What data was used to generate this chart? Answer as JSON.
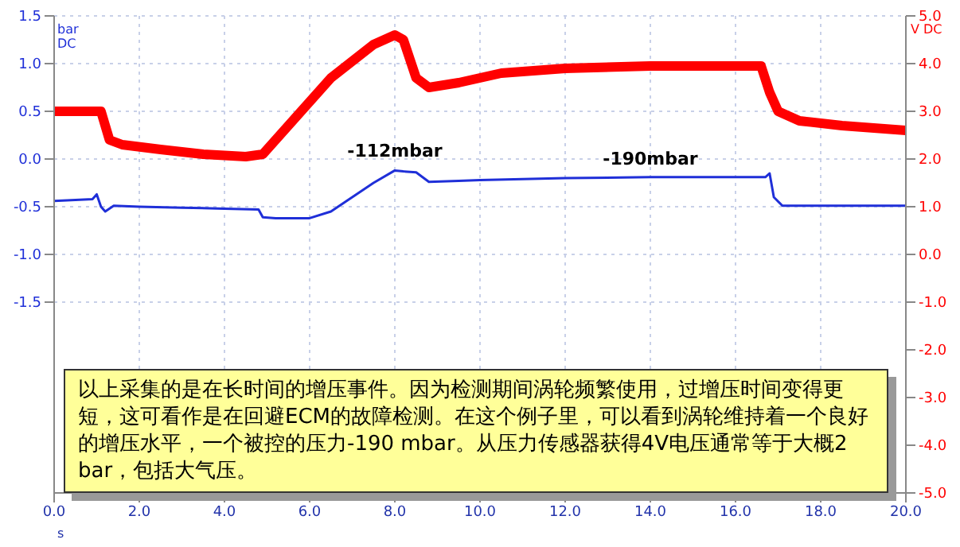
{
  "chart_data": {
    "type": "line",
    "xlabel": "s",
    "ylabel": "bar DC",
    "y2label": "V DC",
    "xlim": [
      0,
      20
    ],
    "xticks": [
      {
        "value": 0,
        "label": "0.0"
      },
      {
        "value": 2,
        "label": "2.0"
      },
      {
        "value": 4,
        "label": "4.0"
      },
      {
        "value": 6,
        "label": "6.0"
      },
      {
        "value": 8,
        "label": "8.0"
      },
      {
        "value": 10,
        "label": "10.0"
      },
      {
        "value": 12,
        "label": "12.0"
      },
      {
        "value": 14,
        "label": "14.0"
      },
      {
        "value": 16,
        "label": "16.0"
      },
      {
        "value": 18,
        "label": "18.0"
      },
      {
        "value": 20,
        "label": "20.0"
      }
    ],
    "ylim": [
      -3.5,
      1.5
    ],
    "yticks": [
      {
        "value": -1.5,
        "label": "-1.5"
      },
      {
        "value": -1,
        "label": "-1.0"
      },
      {
        "value": -0.5,
        "label": "-0.5"
      },
      {
        "value": 0,
        "label": "0.0"
      },
      {
        "value": 0.5,
        "label": "0.5"
      },
      {
        "value": 1,
        "label": "1.0"
      },
      {
        "value": 1.5,
        "label": "1.5"
      }
    ],
    "y2lim": [
      -5,
      5
    ],
    "y2ticks": [
      {
        "value": -5,
        "label": "-5.0"
      },
      {
        "value": -4,
        "label": "-4.0"
      },
      {
        "value": -3,
        "label": "-3.0"
      },
      {
        "value": -2,
        "label": "-2.0"
      },
      {
        "value": -1,
        "label": "-1.0"
      },
      {
        "value": 0,
        "label": "0.0"
      },
      {
        "value": 1,
        "label": "1.0"
      },
      {
        "value": 2,
        "label": "2.0"
      },
      {
        "value": 3,
        "label": "3.0"
      },
      {
        "value": 4,
        "label": "4.0"
      },
      {
        "value": 5,
        "label": "5.0"
      }
    ],
    "grid": true,
    "marker": "none",
    "line_style": "solid",
    "series": [
      {
        "color": "#ff0000",
        "axis": "y2",
        "x": [
          0,
          1.1,
          1.3,
          1.6,
          2.5,
          3.5,
          4.5,
          4.9,
          5.5,
          6.5,
          7.5,
          8.0,
          8.2,
          8.5,
          8.8,
          9.5,
          10.5,
          12,
          14,
          16,
          16.6,
          16.8,
          17.0,
          17.5,
          18.5,
          20
        ],
        "values": [
          3.0,
          3.0,
          2.4,
          2.3,
          2.2,
          2.1,
          2.05,
          2.1,
          2.7,
          3.7,
          4.4,
          4.6,
          4.5,
          3.7,
          3.5,
          3.6,
          3.8,
          3.9,
          3.95,
          3.95,
          3.95,
          3.4,
          3.0,
          2.8,
          2.7,
          2.6
        ]
      },
      {
        "color": "#1f2fd8",
        "axis": "y",
        "x": [
          0,
          0.9,
          1.0,
          1.1,
          1.2,
          1.4,
          2,
          3,
          4,
          4.8,
          4.9,
          5.2,
          6.0,
          6.5,
          7.0,
          7.5,
          8.0,
          8.2,
          8.5,
          8.8,
          9.5,
          10,
          12,
          14,
          16,
          16.7,
          16.8,
          16.9,
          17.1,
          18,
          20
        ],
        "values": [
          -0.44,
          -0.42,
          -0.37,
          -0.5,
          -0.55,
          -0.49,
          -0.5,
          -0.51,
          -0.52,
          -0.53,
          -0.61,
          -0.62,
          -0.62,
          -0.55,
          -0.4,
          -0.25,
          -0.12,
          -0.13,
          -0.14,
          -0.24,
          -0.23,
          -0.22,
          -0.2,
          -0.19,
          -0.19,
          -0.19,
          -0.15,
          -0.4,
          -0.49,
          -0.49,
          -0.49
        ]
      }
    ],
    "annotations": [
      {
        "text": "-112mbar",
        "x": 8,
        "y": -0.112
      },
      {
        "text": "-190mbar",
        "x": 14,
        "y": -0.19
      },
      "以上采集的是在长时间的增压事件。因为检测期间涡轮频繁使用，过增压时间变得更短，这可看作是在回避ECM的故障检测。在这个例子里，可以看到涡轮维持着一个良好的增压水平，一个被控的压力-190 mbar。从压力传感器获得4V电压通常等于大概2 bar，包括大气压。"
    ]
  }
}
